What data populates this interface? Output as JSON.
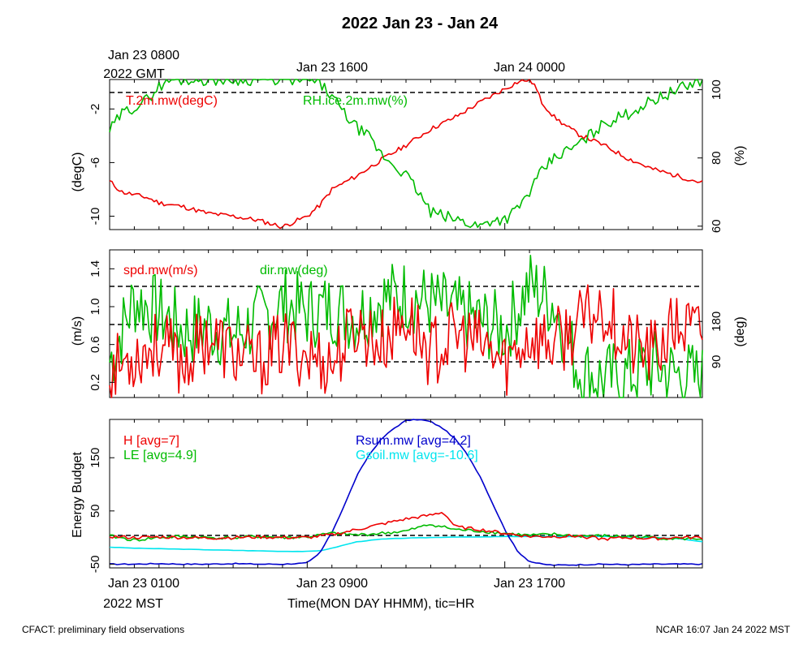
{
  "header": {
    "title": "2022 Jan 23 - Jan 24",
    "gmt_ticks": [
      "Jan 23 0800",
      "Jan 23 1600",
      "Jan 24 0000"
    ],
    "gmt_year": "2022 GMT"
  },
  "footer": {
    "left": "CFACT: preliminary field observations",
    "right": "NCAR 16:07 Jan 24 2022 MST",
    "mst_ticks": [
      "Jan 23 0100",
      "Jan 23 0900",
      "Jan 23 1700"
    ],
    "mst_year": "2022 MST",
    "xlabel": "Time(MON DAY HHMM), tic=HR"
  },
  "colors": {
    "red": "#ee0000",
    "green": "#00bb00",
    "blue": "#0000cc",
    "cyan": "#00e5ee"
  },
  "chart_data": [
    {
      "type": "line",
      "name": "temperature-rh",
      "x_hours_mst": [
        0,
        24
      ],
      "ylabel_left": "(degC)",
      "ylabel_right": "(%)",
      "ylim_left": [
        -11,
        0.2
      ],
      "ylim_right": [
        59,
        103
      ],
      "yticks_left": [
        -10,
        -6,
        -2
      ],
      "yticks_right": [
        60,
        80,
        100
      ],
      "reference_right": [
        100
      ],
      "series": [
        {
          "name": "T.2m.mw(degC)",
          "color": "red",
          "axis": "left",
          "t": [
            0,
            0.5,
            1,
            1.5,
            2,
            3,
            4,
            5,
            6,
            7,
            7.5,
            8,
            8.5,
            9,
            10,
            11,
            12,
            13,
            14,
            15,
            16,
            16.5,
            17,
            17.2,
            17.5,
            18,
            18.5,
            19,
            20,
            21,
            22,
            23,
            24
          ],
          "v": [
            -7.4,
            -8.2,
            -8.4,
            -8.6,
            -9.0,
            -9.3,
            -9.8,
            -10.0,
            -10.3,
            -10.8,
            -10.4,
            -10.0,
            -9.2,
            -8.0,
            -7.0,
            -5.8,
            -4.7,
            -3.5,
            -2.6,
            -1.5,
            -0.5,
            0.0,
            0.2,
            -0.2,
            -1.5,
            -2.6,
            -3.3,
            -3.9,
            -4.7,
            -5.7,
            -6.5,
            -7.0,
            -7.5
          ]
        },
        {
          "name": "RH.ice.2m.mw(%)",
          "color": "green",
          "axis": "right",
          "t": [
            0,
            0.5,
            1,
            1.5,
            2,
            2.5,
            3,
            4,
            5,
            6,
            7,
            8,
            8.5,
            9,
            9.5,
            10,
            10.5,
            11,
            11.5,
            12,
            12.5,
            13,
            14,
            15,
            15.5,
            16,
            16.5,
            17,
            17.5,
            18,
            18.5,
            19,
            20,
            21,
            22,
            23,
            24
          ],
          "v": [
            88,
            93,
            95,
            97,
            101,
            103,
            103,
            103,
            103,
            103,
            103,
            103,
            102,
            98,
            93,
            89,
            86,
            81,
            78,
            75,
            70,
            64,
            62,
            60,
            62,
            62,
            65,
            70,
            76,
            80,
            82,
            84,
            90,
            93,
            97,
            100,
            103
          ]
        }
      ]
    },
    {
      "type": "line",
      "name": "wind",
      "ylabel_left": "(m/s)",
      "ylabel_right": "(deg)",
      "ylim_left": [
        0.04,
        1.6
      ],
      "yticks_left": [
        0.2,
        0.6,
        1.0,
        1.4
      ],
      "yticks_left_labels": [
        "0.2",
        "0.6",
        "1.0",
        "1.4"
      ],
      "ylim_right": [
        10,
        340
      ],
      "yticks_right": [
        90,
        180
      ],
      "reference_right": [
        90,
        180,
        270
      ],
      "series": [
        {
          "name": "spd.mw(m/s)",
          "color": "red",
          "axis": "left",
          "t": [
            0,
            1,
            2,
            3,
            4,
            5,
            6,
            7,
            8,
            9,
            10,
            11,
            12,
            13,
            14,
            15,
            16,
            17,
            18,
            19,
            20,
            21,
            22,
            23,
            24
          ],
          "v": [
            0.3,
            0.5,
            0.6,
            0.4,
            0.7,
            0.5,
            0.4,
            0.6,
            0.5,
            0.4,
            0.8,
            0.6,
            0.9,
            0.5,
            0.7,
            0.6,
            0.4,
            0.7,
            0.6,
            0.8,
            1.0,
            0.6,
            0.5,
            0.8,
            0.7
          ]
        },
        {
          "name": "dir.mw(deg)",
          "color": "green",
          "axis": "right",
          "t": [
            0,
            1,
            2,
            3,
            4,
            5,
            6,
            7,
            8,
            9,
            10,
            11,
            12,
            13,
            14,
            15,
            16,
            17,
            18,
            19,
            20,
            21,
            22,
            23,
            24
          ],
          "v": [
            90,
            230,
            200,
            160,
            170,
            150,
            180,
            220,
            200,
            210,
            190,
            230,
            240,
            220,
            200,
            180,
            160,
            260,
            220,
            70,
            50,
            60,
            80,
            60,
            50
          ]
        }
      ]
    },
    {
      "type": "line",
      "name": "energy-budget",
      "ylabel": "Energy Budget",
      "ylim": [
        -57,
        222
      ],
      "yticks": [
        -50,
        50,
        150
      ],
      "reference": [
        0
      ],
      "series": [
        {
          "name": "H [avg=7]",
          "color": "red",
          "t": [
            0,
            1,
            2,
            3,
            4,
            5,
            6,
            7,
            8,
            9,
            10,
            11,
            12,
            13,
            13.5,
            14,
            15,
            16,
            17,
            18,
            19,
            20,
            21,
            22,
            23,
            24
          ],
          "v": [
            2,
            0,
            1,
            0,
            -1,
            0,
            1,
            0,
            0,
            5,
            15,
            25,
            35,
            42,
            48,
            20,
            15,
            8,
            2,
            2,
            3,
            -3,
            0,
            -2,
            0,
            0
          ]
        },
        {
          "name": "LE [avg=4.9]",
          "color": "green",
          "t": [
            0,
            1,
            2,
            3,
            4,
            5,
            6,
            7,
            8,
            9,
            10,
            11,
            12,
            13,
            14,
            15,
            16,
            17,
            18,
            19,
            20,
            21,
            22,
            23,
            24
          ],
          "v": [
            3,
            -5,
            0,
            2,
            0,
            -1,
            2,
            0,
            1,
            8,
            5,
            8,
            12,
            25,
            15,
            12,
            8,
            4,
            6,
            3,
            3,
            2,
            0,
            -2,
            -2
          ]
        },
        {
          "name": "Rsum.mw [avg=4.2]",
          "color": "blue",
          "t": [
            0,
            1,
            2,
            3,
            4,
            5,
            6,
            7,
            8,
            8.5,
            9,
            9.5,
            10,
            10.5,
            11,
            11.5,
            12,
            12.5,
            13,
            13.5,
            14,
            14.5,
            15,
            15.5,
            16,
            16.5,
            17,
            17.5,
            18,
            19,
            20,
            21,
            22,
            23,
            24
          ],
          "v": [
            -50,
            -50,
            -49,
            -50,
            -50,
            -49,
            -50,
            -50,
            -48,
            -30,
            10,
            60,
            115,
            155,
            185,
            205,
            220,
            222,
            218,
            205,
            185,
            155,
            115,
            65,
            15,
            -25,
            -45,
            -50,
            -52,
            -51,
            -50,
            -51,
            -50,
            -50,
            -50
          ]
        },
        {
          "name": "Gsoil.mw [avg=-10.6]",
          "color": "cyan",
          "t": [
            0,
            1,
            2,
            3,
            4,
            5,
            6,
            7,
            8,
            8.5,
            9,
            9.5,
            10,
            11,
            12,
            13,
            14,
            15,
            16,
            17,
            18,
            19,
            20,
            21,
            22,
            23,
            24
          ],
          "v": [
            -18,
            -20,
            -21,
            -22,
            -23,
            -24,
            -25,
            -26,
            -26,
            -25,
            -20,
            -14,
            -8,
            -3,
            -1,
            0,
            1,
            1,
            2,
            2,
            2,
            2,
            2,
            1,
            0,
            -2,
            -8
          ]
        }
      ]
    }
  ]
}
